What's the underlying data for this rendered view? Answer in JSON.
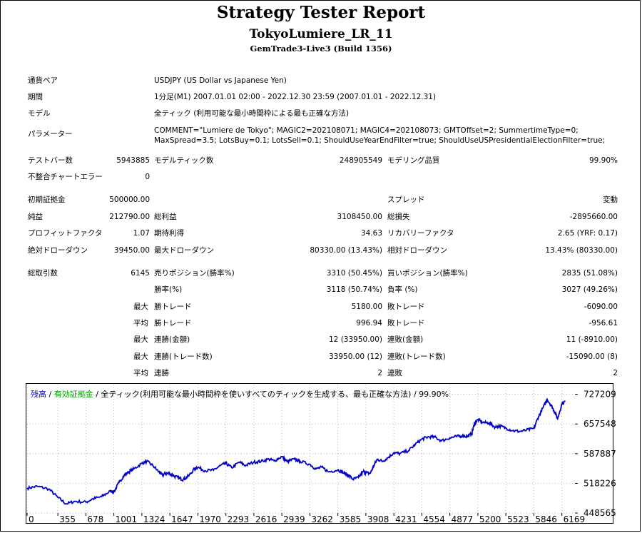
{
  "header": {
    "title": "Strategy Tester Report",
    "ea_name": "TokyoLumiere_LR_11",
    "build": "GemTrade3-Live3 (Build 1356)"
  },
  "info": {
    "symbol_label": "通貨ペア",
    "symbol_value": "USDJPY (US Dollar vs Japanese Yen)",
    "period_label": "期間",
    "period_value": "1分足(M1) 2007.01.01 02:00 - 2022.12.30 23:59 (2007.01.01 - 2022.12.31)",
    "model_label": "モデル",
    "model_value": "全ティック (利用可能な最小時間枠による最も正確な方法)",
    "params_label": "パラメーター",
    "params_value": "COMMENT=\"Lumiere de Tokyo\"; MAGIC2=202108071; MAGIC4=202108073; GMTOffset=2; SummertimeType=0; MaxSpread=3.5; LotsBuy=0.1; LotsSell=0.1; ShouldUseYearEndFilter=true; ShouldUseUSPresidentialElectionFilter=true;"
  },
  "stats": {
    "bars_label": "テストバー数",
    "bars_value": "5943885",
    "ticks_label": "モデルティック数",
    "ticks_value": "248905549",
    "quality_label": "モデリング品質",
    "quality_value": "99.90%",
    "errors_label": "不整合チャートエラー",
    "errors_value": "0",
    "deposit_label": "初期証拠金",
    "deposit_value": "500000.00",
    "spread_label": "スプレッド",
    "spread_value": "変動",
    "net_label": "純益",
    "net_value": "212790.00",
    "gross_profit_label": "総利益",
    "gross_profit_value": "3108450.00",
    "gross_loss_label": "総損失",
    "gross_loss_value": "-2895660.00",
    "pf_label": "プロフィットファクタ",
    "pf_value": "1.07",
    "payoff_label": "期待利得",
    "payoff_value": "34.63",
    "recovery_label": "リカバリーファクタ",
    "recovery_value": "2.65 (YRF: 0.17)",
    "abs_dd_label": "絶対ドローダウン",
    "abs_dd_value": "39450.00",
    "max_dd_label": "最大ドローダウン",
    "max_dd_value": "80330.00 (13.43%)",
    "rel_dd_label": "相対ドローダウン",
    "rel_dd_value": "13.43% (80330.00)",
    "trades_label": "総取引数",
    "trades_value": "6145",
    "short_label": "売りポジション(勝率%)",
    "short_value": "3310 (50.45%)",
    "long_label": "買いポジション(勝率%)",
    "long_value": "2835 (51.08%)",
    "win_rate_label": "勝率(%)",
    "win_rate_value": "3118 (50.74%)",
    "loss_rate_label": "負率 (%)",
    "loss_rate_value": "3027 (49.26%)",
    "max_word": "最大",
    "avg_word": "平均",
    "largest_win_label": "勝トレード",
    "largest_win_value": "5180.00",
    "largest_loss_label": "敗トレード",
    "largest_loss_value": "-6090.00",
    "avg_win_label": "勝トレード",
    "avg_win_value": "996.94",
    "avg_loss_label": "敗トレード",
    "avg_loss_value": "-956.61",
    "max_consec_wins_label": "連勝(金額)",
    "max_consec_wins_value": "12 (33950.00)",
    "max_consec_losses_label": "連敗(金額)",
    "max_consec_losses_value": "11 (-8910.00)",
    "max_consec_profit_label": "連勝(トレード数)",
    "max_consec_profit_value": "33950.00 (12)",
    "max_consec_loss_label": "連敗(トレード数)",
    "max_consec_loss_value": "-15090.00 (8)",
    "avg_consec_wins_label": "連勝",
    "avg_consec_wins_value": "2",
    "avg_consec_losses_label": "連敗",
    "avg_consec_losses_value": "2"
  },
  "chart_legend": {
    "balance": "残高",
    "sep1": " / ",
    "equity": "有効証拠金",
    "rest": " / 全ティック(利用可能な最小時間枠を使いすべてのティックを生成する、最も正確な方法) / 99.90%"
  },
  "chart_data": {
    "type": "line",
    "colors": {
      "balance": "#0000c8",
      "grid": "#b4b4b4"
    },
    "ylim": [
      448565,
      750000
    ],
    "xlim": [
      0,
      6320
    ],
    "y_ticks": [
      "727209",
      "657548",
      "587887",
      "518226",
      "448565"
    ],
    "x_ticks": [
      "0",
      "355",
      "678",
      "1001",
      "1324",
      "1647",
      "1970",
      "2293",
      "2616",
      "2939",
      "3262",
      "3585",
      "3908",
      "4231",
      "4554",
      "4877",
      "5200",
      "5523",
      "5846",
      "6169"
    ],
    "series": [
      {
        "values": [
          [
            0,
            507000
          ],
          [
            120,
            511000
          ],
          [
            250,
            505000
          ],
          [
            355,
            485000
          ],
          [
            450,
            470000
          ],
          [
            550,
            476000
          ],
          [
            678,
            474000
          ],
          [
            760,
            482000
          ],
          [
            860,
            487000
          ],
          [
            960,
            500000
          ],
          [
            1001,
            498000
          ],
          [
            1060,
            520000
          ],
          [
            1120,
            537000
          ],
          [
            1170,
            545000
          ],
          [
            1230,
            552000
          ],
          [
            1324,
            565000
          ],
          [
            1380,
            570000
          ],
          [
            1450,
            560000
          ],
          [
            1520,
            545000
          ],
          [
            1560,
            538000
          ],
          [
            1600,
            542000
          ],
          [
            1647,
            541000
          ],
          [
            1700,
            535000
          ],
          [
            1760,
            530000
          ],
          [
            1800,
            527000
          ],
          [
            1860,
            535000
          ],
          [
            1930,
            552000
          ],
          [
            1970,
            556000
          ],
          [
            2050,
            548000
          ],
          [
            2150,
            549000
          ],
          [
            2230,
            560000
          ],
          [
            2293,
            565000
          ],
          [
            2360,
            555000
          ],
          [
            2450,
            568000
          ],
          [
            2520,
            560000
          ],
          [
            2616,
            568000
          ],
          [
            2700,
            570000
          ],
          [
            2790,
            575000
          ],
          [
            2850,
            571000
          ],
          [
            2939,
            581000
          ],
          [
            3000,
            569000
          ],
          [
            3080,
            575000
          ],
          [
            3150,
            570000
          ],
          [
            3262,
            563000
          ],
          [
            3330,
            552000
          ],
          [
            3400,
            556000
          ],
          [
            3480,
            545000
          ],
          [
            3585,
            550000
          ],
          [
            3650,
            543000
          ],
          [
            3700,
            538000
          ],
          [
            3760,
            528000
          ],
          [
            3820,
            532000
          ],
          [
            3880,
            546000
          ],
          [
            3908,
            543000
          ],
          [
            3960,
            542000
          ],
          [
            4000,
            560000
          ],
          [
            4040,
            575000
          ],
          [
            4100,
            570000
          ],
          [
            4160,
            578000
          ],
          [
            4231,
            590000
          ],
          [
            4300,
            588000
          ],
          [
            4400,
            595000
          ],
          [
            4480,
            610000
          ],
          [
            4554,
            622000
          ],
          [
            4620,
            627000
          ],
          [
            4700,
            627000
          ],
          [
            4780,
            618000
          ],
          [
            4877,
            625000
          ],
          [
            4950,
            628000
          ],
          [
            5020,
            630000
          ],
          [
            5080,
            628000
          ],
          [
            5130,
            635000
          ],
          [
            5160,
            658000
          ],
          [
            5200,
            668000
          ],
          [
            5260,
            661000
          ],
          [
            5330,
            660000
          ],
          [
            5400,
            650000
          ],
          [
            5450,
            653000
          ],
          [
            5523,
            648000
          ],
          [
            5600,
            642000
          ],
          [
            5680,
            640000
          ],
          [
            5760,
            643000
          ],
          [
            5846,
            647000
          ],
          [
            5900,
            675000
          ],
          [
            5950,
            695000
          ],
          [
            6000,
            715000
          ],
          [
            6050,
            700000
          ],
          [
            6080,
            688000
          ],
          [
            6120,
            670000
          ],
          [
            6169,
            705000
          ],
          [
            6210,
            711000
          ]
        ]
      }
    ]
  }
}
